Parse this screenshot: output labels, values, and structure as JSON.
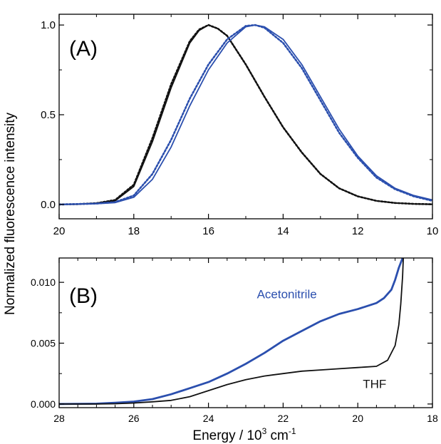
{
  "figure": {
    "ylabel": "Normalized fluorescence intensity",
    "xlabel_main": "Energy / 10",
    "xlabel_sup1": "3",
    "xlabel_unit": " cm",
    "xlabel_sup2": "-1",
    "colors": {
      "black": "#111111",
      "blue": "#2b4fae",
      "axis": "#000000"
    }
  },
  "chart_data": [
    {
      "panel_label": "(A)",
      "type": "line",
      "xlim": [
        20,
        10
      ],
      "ylim": [
        -0.08,
        1.06
      ],
      "xticks": [
        {
          "v": 20,
          "label": "20"
        },
        {
          "v": 18,
          "label": "18"
        },
        {
          "v": 16,
          "label": "16"
        },
        {
          "v": 14,
          "label": "14"
        },
        {
          "v": 12,
          "label": "12"
        },
        {
          "v": 10,
          "label": "10"
        }
      ],
      "yticks": [
        {
          "v": 0.0,
          "label": "0.0"
        },
        {
          "v": 0.5,
          "label": "0.5"
        },
        {
          "v": 1.0,
          "label": "1.0"
        }
      ],
      "series": [
        {
          "color": "black",
          "style": "solid",
          "x": [
            20,
            19.5,
            19,
            18.5,
            18,
            17.5,
            17,
            16.5,
            16.25,
            16,
            15.75,
            15.5,
            15,
            14.5,
            14,
            13.5,
            13,
            12.5,
            12,
            11.5,
            11,
            10.5,
            10
          ],
          "y": [
            0.0,
            0.002,
            0.006,
            0.02,
            0.1,
            0.35,
            0.65,
            0.9,
            0.97,
            1.0,
            0.98,
            0.94,
            0.78,
            0.6,
            0.43,
            0.29,
            0.17,
            0.09,
            0.045,
            0.02,
            0.008,
            0.003,
            0.001
          ]
        },
        {
          "color": "black",
          "style": "dotted",
          "x": [
            20,
            19.5,
            19,
            18.5,
            18,
            17.5,
            17,
            16.5,
            16.25,
            16,
            15.75,
            15.5,
            15,
            14.5,
            14,
            13.5,
            13,
            12.5,
            12,
            11.5,
            11,
            10.5,
            10
          ],
          "y": [
            0.0,
            0.002,
            0.007,
            0.025,
            0.11,
            0.37,
            0.67,
            0.91,
            0.975,
            1.0,
            0.98,
            0.94,
            0.78,
            0.6,
            0.43,
            0.29,
            0.17,
            0.09,
            0.045,
            0.02,
            0.008,
            0.003,
            0.001
          ]
        },
        {
          "color": "blue",
          "style": "solid",
          "x": [
            20,
            19,
            18.5,
            18,
            17.5,
            17,
            16.5,
            16,
            15.5,
            15,
            14.75,
            14.5,
            14,
            13.5,
            13,
            12.5,
            12,
            11.5,
            11,
            10.5,
            10
          ],
          "y": [
            0.0,
            0.004,
            0.01,
            0.04,
            0.14,
            0.32,
            0.55,
            0.75,
            0.9,
            0.99,
            1.0,
            0.99,
            0.92,
            0.78,
            0.6,
            0.42,
            0.27,
            0.16,
            0.09,
            0.05,
            0.025
          ]
        },
        {
          "color": "blue",
          "style": "dotted",
          "x": [
            20,
            19,
            18.5,
            18,
            17.5,
            17,
            16.5,
            16,
            15.5,
            15,
            14.75,
            14.5,
            14,
            13.5,
            13,
            12.5,
            12,
            11.5,
            11,
            10.5,
            10
          ],
          "y": [
            0.0,
            0.005,
            0.013,
            0.05,
            0.17,
            0.36,
            0.59,
            0.78,
            0.92,
            0.995,
            1.0,
            0.985,
            0.9,
            0.76,
            0.58,
            0.4,
            0.26,
            0.15,
            0.085,
            0.045,
            0.02
          ]
        }
      ]
    },
    {
      "panel_label": "(B)",
      "type": "line",
      "xlim": [
        28,
        18
      ],
      "ylim": [
        -0.0003,
        0.012
      ],
      "xticks": [
        {
          "v": 28,
          "label": "28"
        },
        {
          "v": 26,
          "label": "26"
        },
        {
          "v": 24,
          "label": "24"
        },
        {
          "v": 22,
          "label": "22"
        },
        {
          "v": 20,
          "label": "20"
        },
        {
          "v": 18,
          "label": "18"
        }
      ],
      "yticks": [
        {
          "v": 0.0,
          "label": "0.000"
        },
        {
          "v": 0.005,
          "label": "0.005"
        },
        {
          "v": 0.01,
          "label": "0.010"
        }
      ],
      "annotations": [
        {
          "text": "Acetonitrile",
          "color": "blue",
          "x": 21.9,
          "y": 0.0087
        },
        {
          "text": "THF",
          "color": "black",
          "x": 19.55,
          "y": 0.0013
        }
      ],
      "series": [
        {
          "color": "blue",
          "style": "solid",
          "name": "Acetonitrile",
          "x": [
            28,
            27,
            26.5,
            26,
            25.5,
            25,
            24.5,
            24,
            23.5,
            23,
            22.5,
            22,
            21.5,
            21,
            20.5,
            20,
            19.8,
            19.5,
            19.3,
            19.1,
            19,
            18.9,
            18.8
          ],
          "y": [
            0.0,
            3e-05,
            0.0001,
            0.0002,
            0.0004,
            0.0008,
            0.0013,
            0.0018,
            0.0025,
            0.0033,
            0.0042,
            0.0052,
            0.006,
            0.0068,
            0.0074,
            0.0078,
            0.008,
            0.0083,
            0.0087,
            0.0094,
            0.0102,
            0.0112,
            0.012
          ]
        },
        {
          "color": "black",
          "style": "solid",
          "name": "THF",
          "x": [
            28,
            27,
            26.5,
            26,
            25.5,
            25,
            24.5,
            24,
            23.5,
            23,
            22.5,
            22,
            21.5,
            21,
            20.5,
            20,
            19.5,
            19.2,
            19.0,
            18.9,
            18.85,
            18.8,
            18.78
          ],
          "y": [
            0.0,
            0.0,
            2e-05,
            8e-05,
            0.00018,
            0.0003,
            0.0006,
            0.0011,
            0.0016,
            0.002,
            0.0023,
            0.0025,
            0.0027,
            0.0028,
            0.0029,
            0.003,
            0.0031,
            0.0036,
            0.0048,
            0.0065,
            0.0082,
            0.0105,
            0.012
          ]
        }
      ]
    }
  ]
}
